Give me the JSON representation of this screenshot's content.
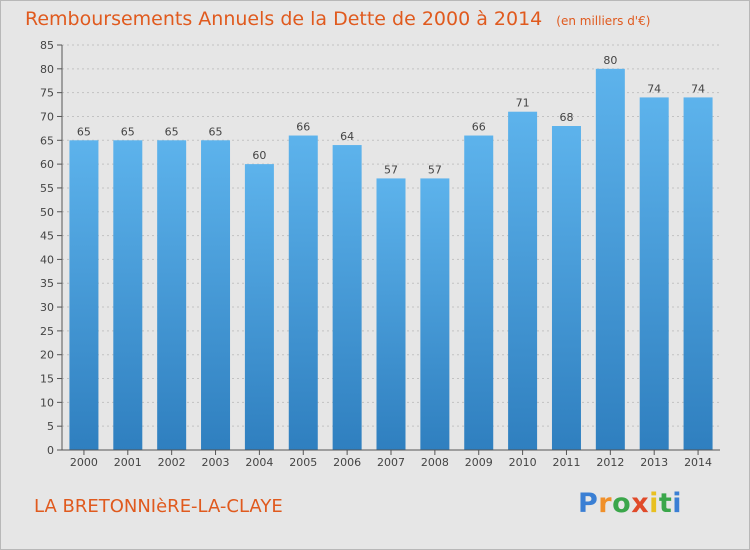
{
  "header": {
    "title": "Remboursements Annuels de la Dette de 2000 à 2014",
    "unit": "(en milliers d'€)"
  },
  "footer": {
    "place": "LA BRETONNIèRE-LA-CLAYE"
  },
  "logo": {
    "text": "Proxiti",
    "letters": [
      "P",
      "r",
      "o",
      "x",
      "i",
      "t",
      "i"
    ],
    "colors": [
      "#3a7fd4",
      "#f0902a",
      "#3aa64a",
      "#e04a2a",
      "#e8c020",
      "#3aa64a",
      "#3a7fd4"
    ]
  },
  "colors": {
    "title": "#e05a1e",
    "bar_top": "#5db3ec",
    "bar_bottom": "#2f7fbf",
    "background": "#e6e6e6"
  },
  "chart_data": {
    "type": "bar",
    "title": "Remboursements Annuels de la Dette de 2000 à 2014",
    "unit": "(en milliers d'€)",
    "categories": [
      "2000",
      "2001",
      "2002",
      "2003",
      "2004",
      "2005",
      "2006",
      "2007",
      "2008",
      "2009",
      "2010",
      "2011",
      "2012",
      "2013",
      "2014"
    ],
    "values": [
      65,
      65,
      65,
      65,
      60,
      66,
      64,
      57,
      57,
      66,
      71,
      68,
      80,
      74,
      74
    ],
    "data_labels": [
      "65",
      "65",
      "65",
      "65",
      "60",
      "66",
      "64",
      "57",
      "57",
      "66",
      "71",
      "68",
      "80",
      "74",
      "74"
    ],
    "yticks": [
      0,
      5,
      10,
      15,
      20,
      25,
      30,
      35,
      40,
      45,
      50,
      55,
      60,
      65,
      70,
      75,
      80,
      85
    ],
    "ylim": [
      0,
      85
    ],
    "xlabel": "",
    "ylabel": "",
    "grid": true
  }
}
